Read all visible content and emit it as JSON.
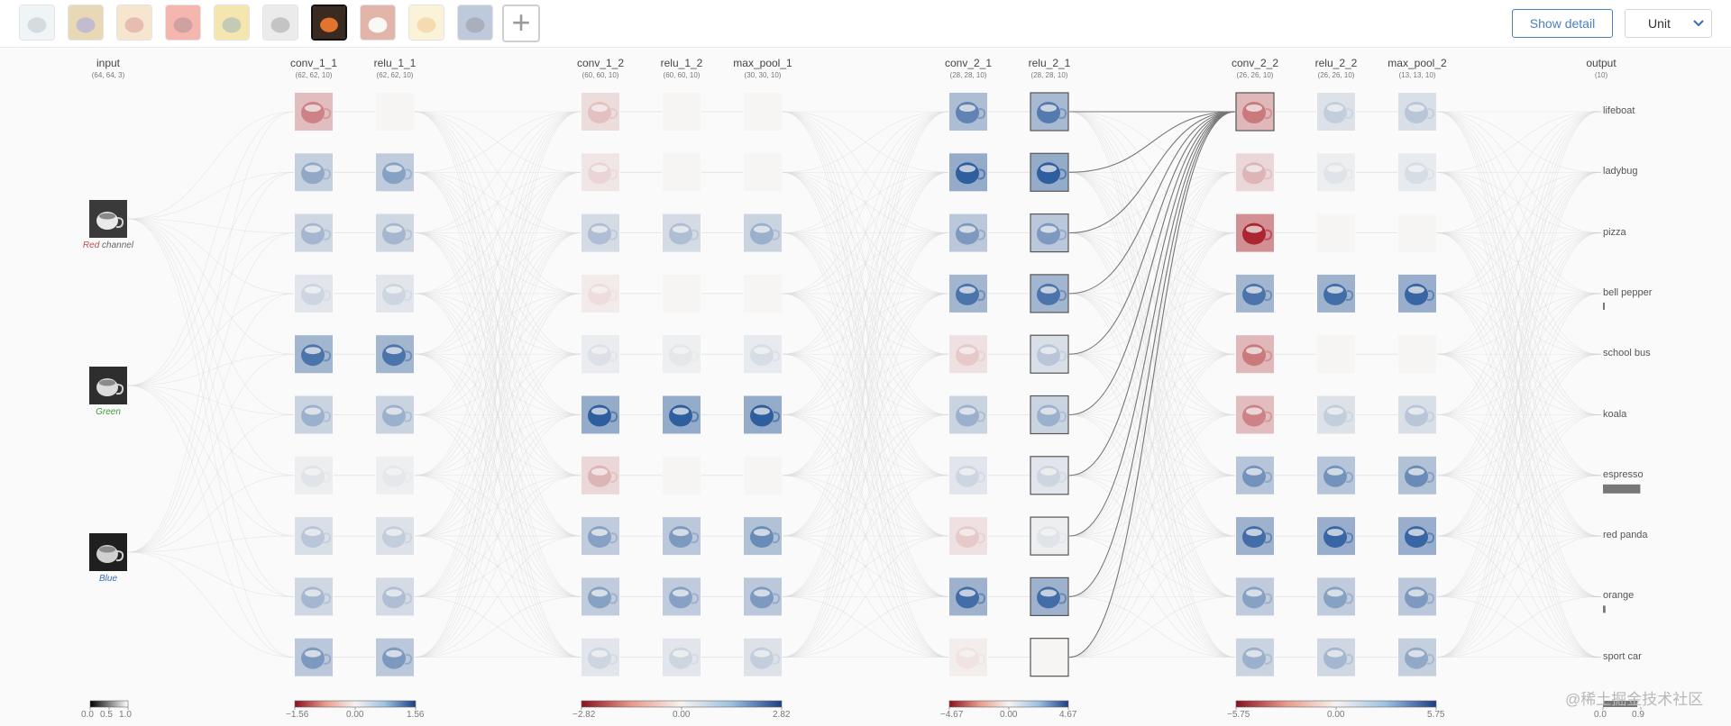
{
  "toolbar": {
    "thumbnails": [
      {
        "name": "lifeboat",
        "colors": [
          "#d8e4ea",
          "#9aa6b0"
        ]
      },
      {
        "name": "ladybug",
        "colors": [
          "#c9a04a",
          "#6c5a8a"
        ]
      },
      {
        "name": "pizza",
        "colors": [
          "#e9c28c",
          "#c25b3a"
        ]
      },
      {
        "name": "bell pepper",
        "colors": [
          "#e64a3a",
          "#8a1a14"
        ]
      },
      {
        "name": "school bus",
        "colors": [
          "#e8c33a",
          "#6b7f4a"
        ]
      },
      {
        "name": "koala",
        "colors": [
          "#cfcfcf",
          "#6e6e6e"
        ]
      },
      {
        "name": "espresso",
        "colors": [
          "#3a2a20",
          "#e2742e"
        ]
      },
      {
        "name": "red panda",
        "colors": [
          "#b5492a",
          "#f0eee8"
        ]
      },
      {
        "name": "orange",
        "colors": [
          "#f3e3a2",
          "#e8a63a"
        ]
      },
      {
        "name": "sport car",
        "colors": [
          "#5e7aa8",
          "#2a3a5a"
        ]
      }
    ],
    "selected": 6,
    "add_label": "+",
    "show_detail_label": "Show detail",
    "unit_label": "Unit"
  },
  "input": {
    "name": "input",
    "dims": "(64, 64, 3)",
    "channels": [
      {
        "label": "Red",
        "suffix": " channel",
        "color": "#c24a4a"
      },
      {
        "label": "Green",
        "suffix": "",
        "color": "#3e9a3e"
      },
      {
        "label": "Blue",
        "suffix": "",
        "color": "#3a6ab8"
      }
    ]
  },
  "layers": [
    {
      "name": "conv_1_1",
      "dims": "(62, 62, 10)",
      "vals": [
        -0.55,
        0.5,
        0.4,
        0.2,
        0.85,
        0.45,
        0.1,
        0.3,
        0.4,
        0.6
      ]
    },
    {
      "name": "relu_1_1",
      "dims": "(62, 62, 10)",
      "vals": [
        0,
        0.55,
        0.4,
        0.2,
        0.85,
        0.45,
        0.08,
        0.25,
        0.35,
        0.6
      ]
    },
    {
      "name": "conv_1_2",
      "dims": "(60, 60, 10)",
      "vals": [
        -0.25,
        -0.15,
        0.35,
        -0.1,
        0.12,
        1.0,
        -0.3,
        0.55,
        0.55,
        0.2
      ]
    },
    {
      "name": "relu_1_2",
      "dims": "(60, 60, 10)",
      "vals": [
        0,
        0,
        0.35,
        0,
        0.08,
        1.0,
        0,
        0.6,
        0.55,
        0.2
      ]
    },
    {
      "name": "max_pool_1",
      "dims": "(30, 30, 10)",
      "vals": [
        0,
        0,
        0.45,
        0,
        0.15,
        1.0,
        0,
        0.7,
        0.6,
        0.25
      ]
    },
    {
      "name": "conv_2_1",
      "dims": "(28, 28, 10)",
      "vals": [
        0.75,
        1.0,
        0.6,
        0.85,
        -0.2,
        0.45,
        0.2,
        -0.2,
        0.9,
        -0.08
      ]
    },
    {
      "name": "relu_2_1",
      "dims": "(28, 28, 10)",
      "vals": [
        0.8,
        1.0,
        0.6,
        0.85,
        0.3,
        0.45,
        0.2,
        0.1,
        0.9,
        0
      ]
    },
    {
      "name": "conv_2_2",
      "dims": "(26, 26, 10)",
      "vals": [
        -0.6,
        -0.3,
        -1.0,
        0.85,
        -0.6,
        -0.55,
        0.65,
        0.9,
        0.55,
        0.45
      ]
    },
    {
      "name": "relu_2_2",
      "dims": "(26, 26, 10)",
      "vals": [
        0.25,
        0.1,
        0,
        0.9,
        0,
        0.25,
        0.65,
        0.95,
        0.55,
        0.4
      ]
    },
    {
      "name": "max_pool_2",
      "dims": "(13, 13, 10)",
      "vals": [
        0.3,
        0.15,
        0,
        0.95,
        0,
        0.3,
        0.7,
        0.95,
        0.6,
        0.5
      ]
    }
  ],
  "output": {
    "name": "output",
    "dims": "(10)",
    "classes": [
      "lifeboat",
      "ladybug",
      "pizza",
      "bell pepper",
      "school bus",
      "koala",
      "espresso",
      "red panda",
      "orange",
      "sport car"
    ],
    "probs": [
      0,
      0,
      0,
      0.02,
      0,
      0,
      0.9,
      0,
      0.06,
      0
    ]
  },
  "colorbars": [
    {
      "kind": "gray",
      "ticks": [
        "0.0",
        "0.5",
        "1.0"
      ]
    },
    {
      "kind": "div",
      "ticks": [
        "−1.56",
        "0.00",
        "1.56"
      ]
    },
    {
      "kind": "div",
      "ticks": [
        "−2.82",
        "0.00",
        "2.82"
      ]
    },
    {
      "kind": "div",
      "ticks": [
        "−4.67",
        "0.00",
        "4.67"
      ]
    },
    {
      "kind": "div",
      "ticks": [
        "−5.75",
        "0.00",
        "5.75"
      ]
    },
    {
      "kind": "prob",
      "ticks": [
        "0.0",
        "0.9"
      ]
    }
  ],
  "highlight": {
    "layer": "relu_2_1",
    "target": "conv_2_2 #1"
  },
  "watermark": "@稀土掘金技术社区"
}
